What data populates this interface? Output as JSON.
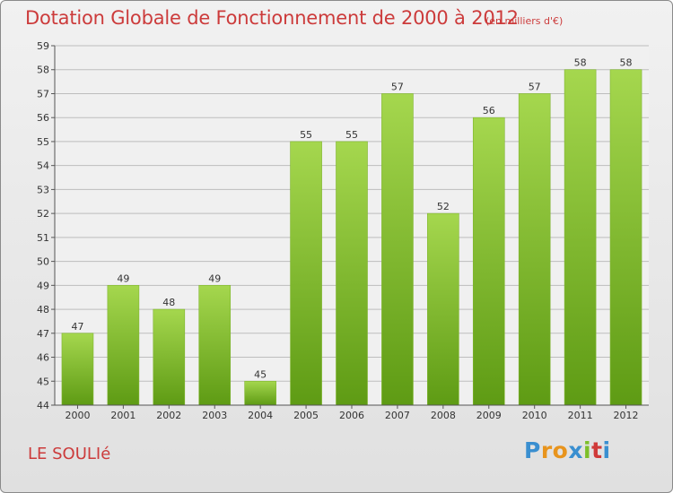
{
  "header": {
    "title": "Dotation Globale de Fonctionnement de 2000 à 2012",
    "unit": "(en milliers d'€)"
  },
  "footer": {
    "city": "LE SOULIé",
    "logo_letters": [
      "P",
      "r",
      "o",
      "x",
      "i",
      "t",
      "i"
    ],
    "logo_colors": [
      "#3a8fd0",
      "#e8941d",
      "#e8941d",
      "#3a8fd0",
      "#7cbf2a",
      "#d03a3a",
      "#3a8fd0"
    ]
  },
  "colors": {
    "title": "#cc3b3b",
    "bar_light": "#a5d74e",
    "bar_dark": "#5e9b14",
    "grid": "#bdbdbd"
  },
  "chart_data": {
    "type": "bar",
    "categories": [
      "2000",
      "2001",
      "2002",
      "2003",
      "2004",
      "2005",
      "2006",
      "2007",
      "2008",
      "2009",
      "2010",
      "2011",
      "2012"
    ],
    "values": [
      47,
      49,
      48,
      49,
      45,
      55,
      55,
      57,
      52,
      56,
      57,
      58,
      58
    ],
    "ylim": [
      44,
      59
    ],
    "yticks": [
      44,
      45,
      46,
      47,
      48,
      49,
      50,
      51,
      52,
      53,
      54,
      55,
      56,
      57,
      58,
      59
    ],
    "grid": true,
    "data_labels": true
  }
}
